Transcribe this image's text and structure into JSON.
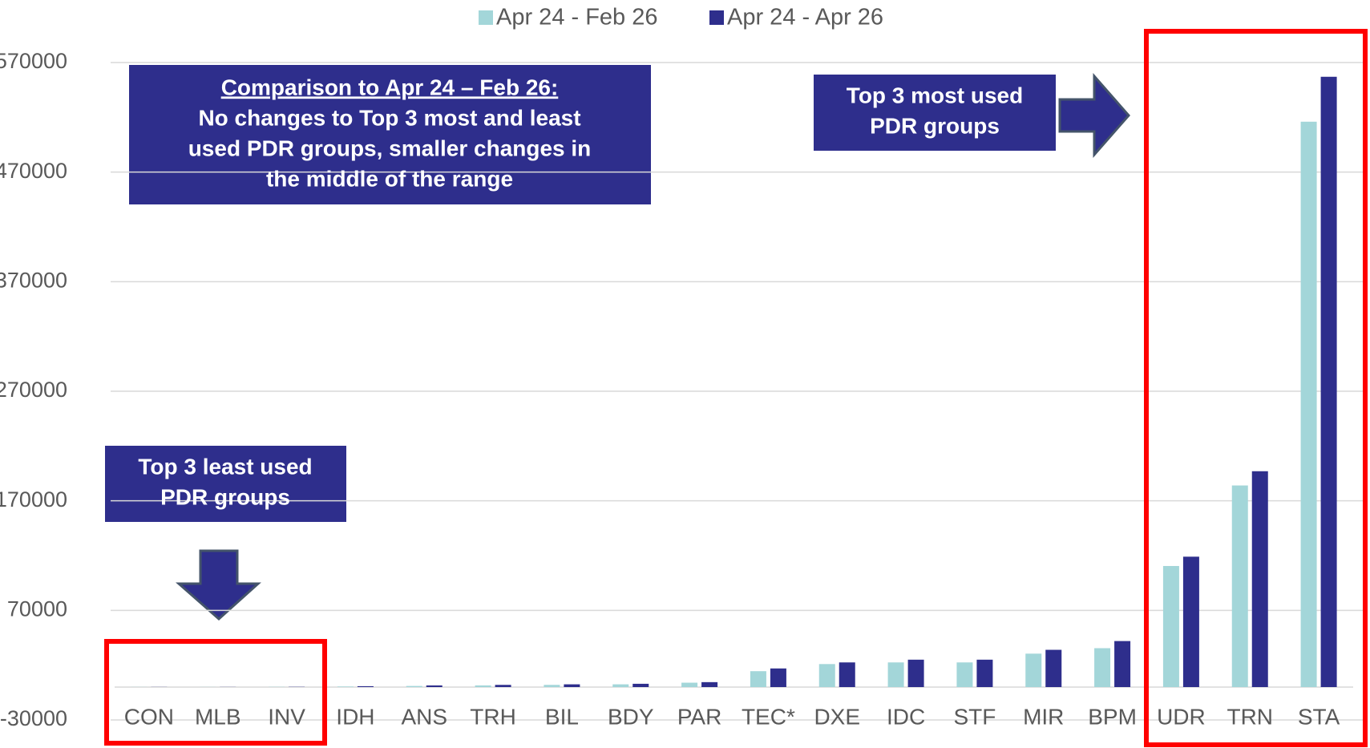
{
  "chart_data": {
    "type": "bar",
    "categories": [
      "CON",
      "MLB",
      "INV",
      "IDH",
      "ANS",
      "TRH",
      "BIL",
      "BDY",
      "PAR",
      "TEC*",
      "DXE",
      "IDC",
      "STF",
      "MIR",
      "BPM",
      "UDR",
      "TRN",
      "STA"
    ],
    "series": [
      {
        "name": "Apr 24 - Feb 26",
        "color": "#a3d6d9",
        "values": [
          100,
          100,
          200,
          500,
          1000,
          1500,
          2000,
          2500,
          4000,
          14500,
          21000,
          22500,
          22500,
          30500,
          35500,
          110500,
          184000,
          516000
        ]
      },
      {
        "name": "Apr 24 - Apr 26",
        "color": "#2e2e8c",
        "values": [
          100,
          100,
          200,
          800,
          1500,
          2000,
          2500,
          3000,
          4500,
          17000,
          22500,
          25000,
          25000,
          34000,
          42000,
          119000,
          197000,
          557000
        ]
      }
    ],
    "ylim": [
      -30000,
      570000
    ],
    "yticks": [
      -30000,
      70000,
      170000,
      270000,
      370000,
      470000,
      570000
    ],
    "grid": true,
    "legend": "top",
    "annotations": [
      {
        "title": "Comparison to Apr 24 – Feb 26:",
        "lines": [
          "No changes to Top 3 most and least",
          "used PDR groups, smaller changes in",
          "the middle of the range"
        ]
      },
      {
        "lines": [
          "Top 3 most used",
          "PDR groups"
        ]
      },
      {
        "lines": [
          "Top 3 least used",
          "PDR groups"
        ]
      }
    ]
  }
}
